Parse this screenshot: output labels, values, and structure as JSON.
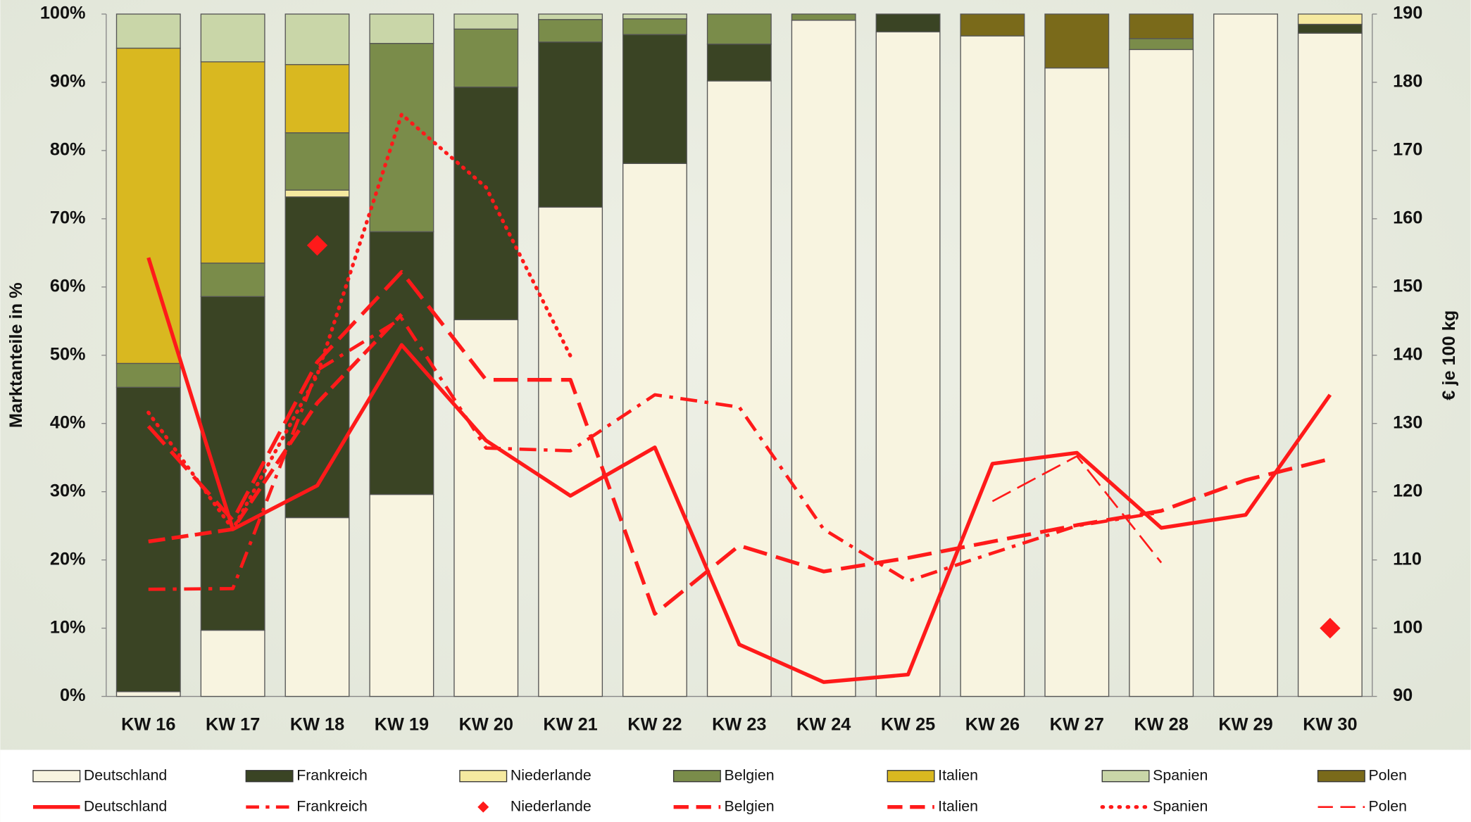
{
  "chart_data": {
    "type": "bar-line",
    "categories": [
      "KW 16",
      "KW 17",
      "KW 18",
      "KW 19",
      "KW 20",
      "KW 21",
      "KW 22",
      "KW 23",
      "KW 24",
      "KW 25",
      "KW 26",
      "KW 27",
      "KW 28",
      "KW 29",
      "KW 30"
    ],
    "ylabel": "Marktanteile in %",
    "y2label": "€ je 100 kg",
    "ylim": [
      0,
      100
    ],
    "yticks": [
      {
        "value": 0,
        "label": "0%"
      },
      {
        "value": 10,
        "label": "10%"
      },
      {
        "value": 20,
        "label": "20%"
      },
      {
        "value": 30,
        "label": "30%"
      },
      {
        "value": 40,
        "label": "40%"
      },
      {
        "value": 50,
        "label": "50%"
      },
      {
        "value": 60,
        "label": "60%"
      },
      {
        "value": 70,
        "label": "70%"
      },
      {
        "value": 80,
        "label": "80%"
      },
      {
        "value": 90,
        "label": "90%"
      },
      {
        "value": 100,
        "label": "100%"
      }
    ],
    "y2lim": [
      90,
      190
    ],
    "y2ticks": [
      90,
      100,
      110,
      120,
      130,
      140,
      150,
      160,
      170,
      180,
      190
    ],
    "series": [
      {
        "name": "Deutschland",
        "kind": "bar",
        "color": "#f8f4e0",
        "values": [
          0.7,
          9.7,
          26.2,
          29.6,
          55.2,
          71.7,
          78.1,
          90.2,
          99.1,
          97.4,
          96.8,
          92.1,
          94.8,
          100,
          97.2
        ]
      },
      {
        "name": "Frankreich",
        "kind": "bar",
        "color": "#3a4424",
        "values": [
          44.6,
          48.9,
          47,
          38.5,
          34.1,
          24.2,
          18.9,
          5.4,
          0,
          2.6,
          0,
          0,
          0,
          0,
          1.3
        ]
      },
      {
        "name": "Niederlande",
        "kind": "bar",
        "color": "#f5e9a0",
        "values": [
          0,
          0,
          1,
          0,
          0,
          0,
          0,
          0,
          0,
          0,
          0,
          0,
          0,
          0,
          1.5
        ]
      },
      {
        "name": "Belgien",
        "kind": "bar",
        "color": "#7a8c4a",
        "values": [
          3.5,
          4.9,
          8.4,
          27.6,
          8.5,
          3.3,
          2.3,
          4.4,
          0.9,
          0,
          0,
          0,
          1.6,
          0,
          0
        ]
      },
      {
        "name": "Italien",
        "kind": "bar",
        "color": "#d9b820",
        "values": [
          46.2,
          29.5,
          10,
          0,
          0,
          0,
          0,
          0,
          0,
          0,
          0,
          0,
          0,
          0,
          0
        ]
      },
      {
        "name": "Spanien",
        "kind": "bar",
        "color": "#c9d6a8",
        "values": [
          5,
          7,
          7.4,
          4.3,
          2.2,
          0.8,
          0.7,
          0,
          0,
          0,
          0,
          0,
          0,
          0,
          0
        ]
      },
      {
        "name": "Polen",
        "kind": "bar",
        "color": "#7a6a1a",
        "values": [
          0,
          0,
          0,
          0,
          0,
          0,
          0,
          0,
          0,
          0,
          3.2,
          7.9,
          3.6,
          0,
          0
        ]
      },
      {
        "name": "Deutschland",
        "kind": "line",
        "style": "solid",
        "axis": "y2",
        "color": "#ff1a1a",
        "values": [
          154.3,
          114.5,
          120.9,
          141.5,
          127.5,
          119.4,
          126.5,
          97.6,
          92.1,
          93.2,
          124.1,
          125.7,
          114.7,
          116.6,
          134.2
        ]
      },
      {
        "name": "Frankreich",
        "kind": "line",
        "style": "dashdot",
        "axis": "y2",
        "color": "#ff1a1a",
        "values": [
          105.7,
          105.8,
          137.8,
          145.4,
          126.4,
          126,
          134.2,
          132.4,
          114.5,
          106.9,
          111,
          115,
          117,
          null,
          null
        ]
      },
      {
        "name": "Niederlande",
        "kind": "line",
        "style": "marker",
        "axis": "y2",
        "color": "#ff1a1a",
        "values": [
          null,
          null,
          156.1,
          null,
          null,
          null,
          null,
          null,
          null,
          null,
          null,
          null,
          null,
          null,
          100
        ]
      },
      {
        "name": "Belgien",
        "kind": "line",
        "style": "dash",
        "axis": "y2",
        "color": "#ff1a1a",
        "values": [
          129.6,
          115.8,
          139,
          152.2,
          136.4,
          136.4,
          102.1,
          112.1,
          108.3,
          110.3,
          112.7,
          115.1,
          117.2,
          121.7,
          124.8
        ]
      },
      {
        "name": "Italien",
        "kind": "line",
        "style": "dash2",
        "axis": "y2",
        "color": "#ff1a1a",
        "values": [
          112.7,
          114.5,
          133,
          146,
          null,
          null,
          null,
          null,
          null,
          null,
          null,
          null,
          null,
          null,
          null
        ]
      },
      {
        "name": "Spanien",
        "kind": "line",
        "style": "dots",
        "axis": "y2",
        "color": "#ff1a1a",
        "values": [
          131.6,
          114.5,
          137.1,
          175.3,
          164.6,
          139.9,
          null,
          null,
          null,
          null,
          null,
          null,
          null,
          null,
          null
        ]
      },
      {
        "name": "Polen",
        "kind": "line",
        "style": "thin",
        "axis": "y2",
        "color": "#ff1a1a",
        "values": [
          null,
          null,
          null,
          null,
          null,
          null,
          null,
          null,
          null,
          null,
          118.6,
          125.2,
          109.6,
          null,
          null
        ]
      }
    ]
  }
}
